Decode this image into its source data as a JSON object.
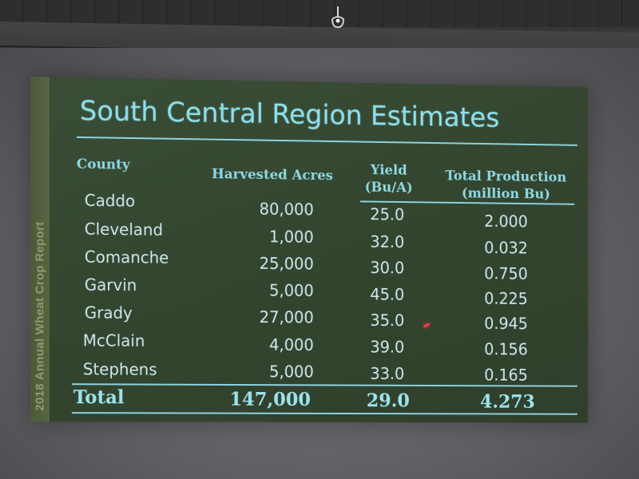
{
  "slide": {
    "side_text": "2018 Annual Wheat Crop Report",
    "title": "South Central Region Estimates",
    "headers": {
      "county": "County",
      "acres": "Harvested Acres",
      "yield_line1": "Yield",
      "yield_line2": "(Bu/A)",
      "production_line1": "Total Production",
      "production_line2": "(million Bu)"
    },
    "rows": [
      {
        "county": "Caddo",
        "acres": "80,000",
        "yield": "25.0",
        "production": "2.000"
      },
      {
        "county": "Cleveland",
        "acres": "1,000",
        "yield": "32.0",
        "production": "0.032"
      },
      {
        "county": "Comanche",
        "acres": "25,000",
        "yield": "30.0",
        "production": "0.750"
      },
      {
        "county": "Garvin",
        "acres": "5,000",
        "yield": "45.0",
        "production": "0.225"
      },
      {
        "county": "Grady",
        "acres": "27,000",
        "yield": "35.0",
        "production": "0.945"
      },
      {
        "county": "McClain",
        "acres": "4,000",
        "yield": "39.0",
        "production": "0.156"
      },
      {
        "county": "Stephens",
        "acres": "5,000",
        "yield": "33.0",
        "production": "0.165"
      }
    ],
    "total": {
      "label": "Total",
      "acres": "147,000",
      "yield": "29.0",
      "production": "4.273"
    }
  },
  "colors": {
    "slide_background": "#34462f",
    "title_color": "#8fe0ec",
    "header_color": "#8ed9e6",
    "text_color": "#cfe8f0",
    "side_band_text": "#8e9c6c",
    "laser_dot": "#ff3b4a"
  },
  "icons": {
    "hook": "ceiling-hook-icon"
  }
}
